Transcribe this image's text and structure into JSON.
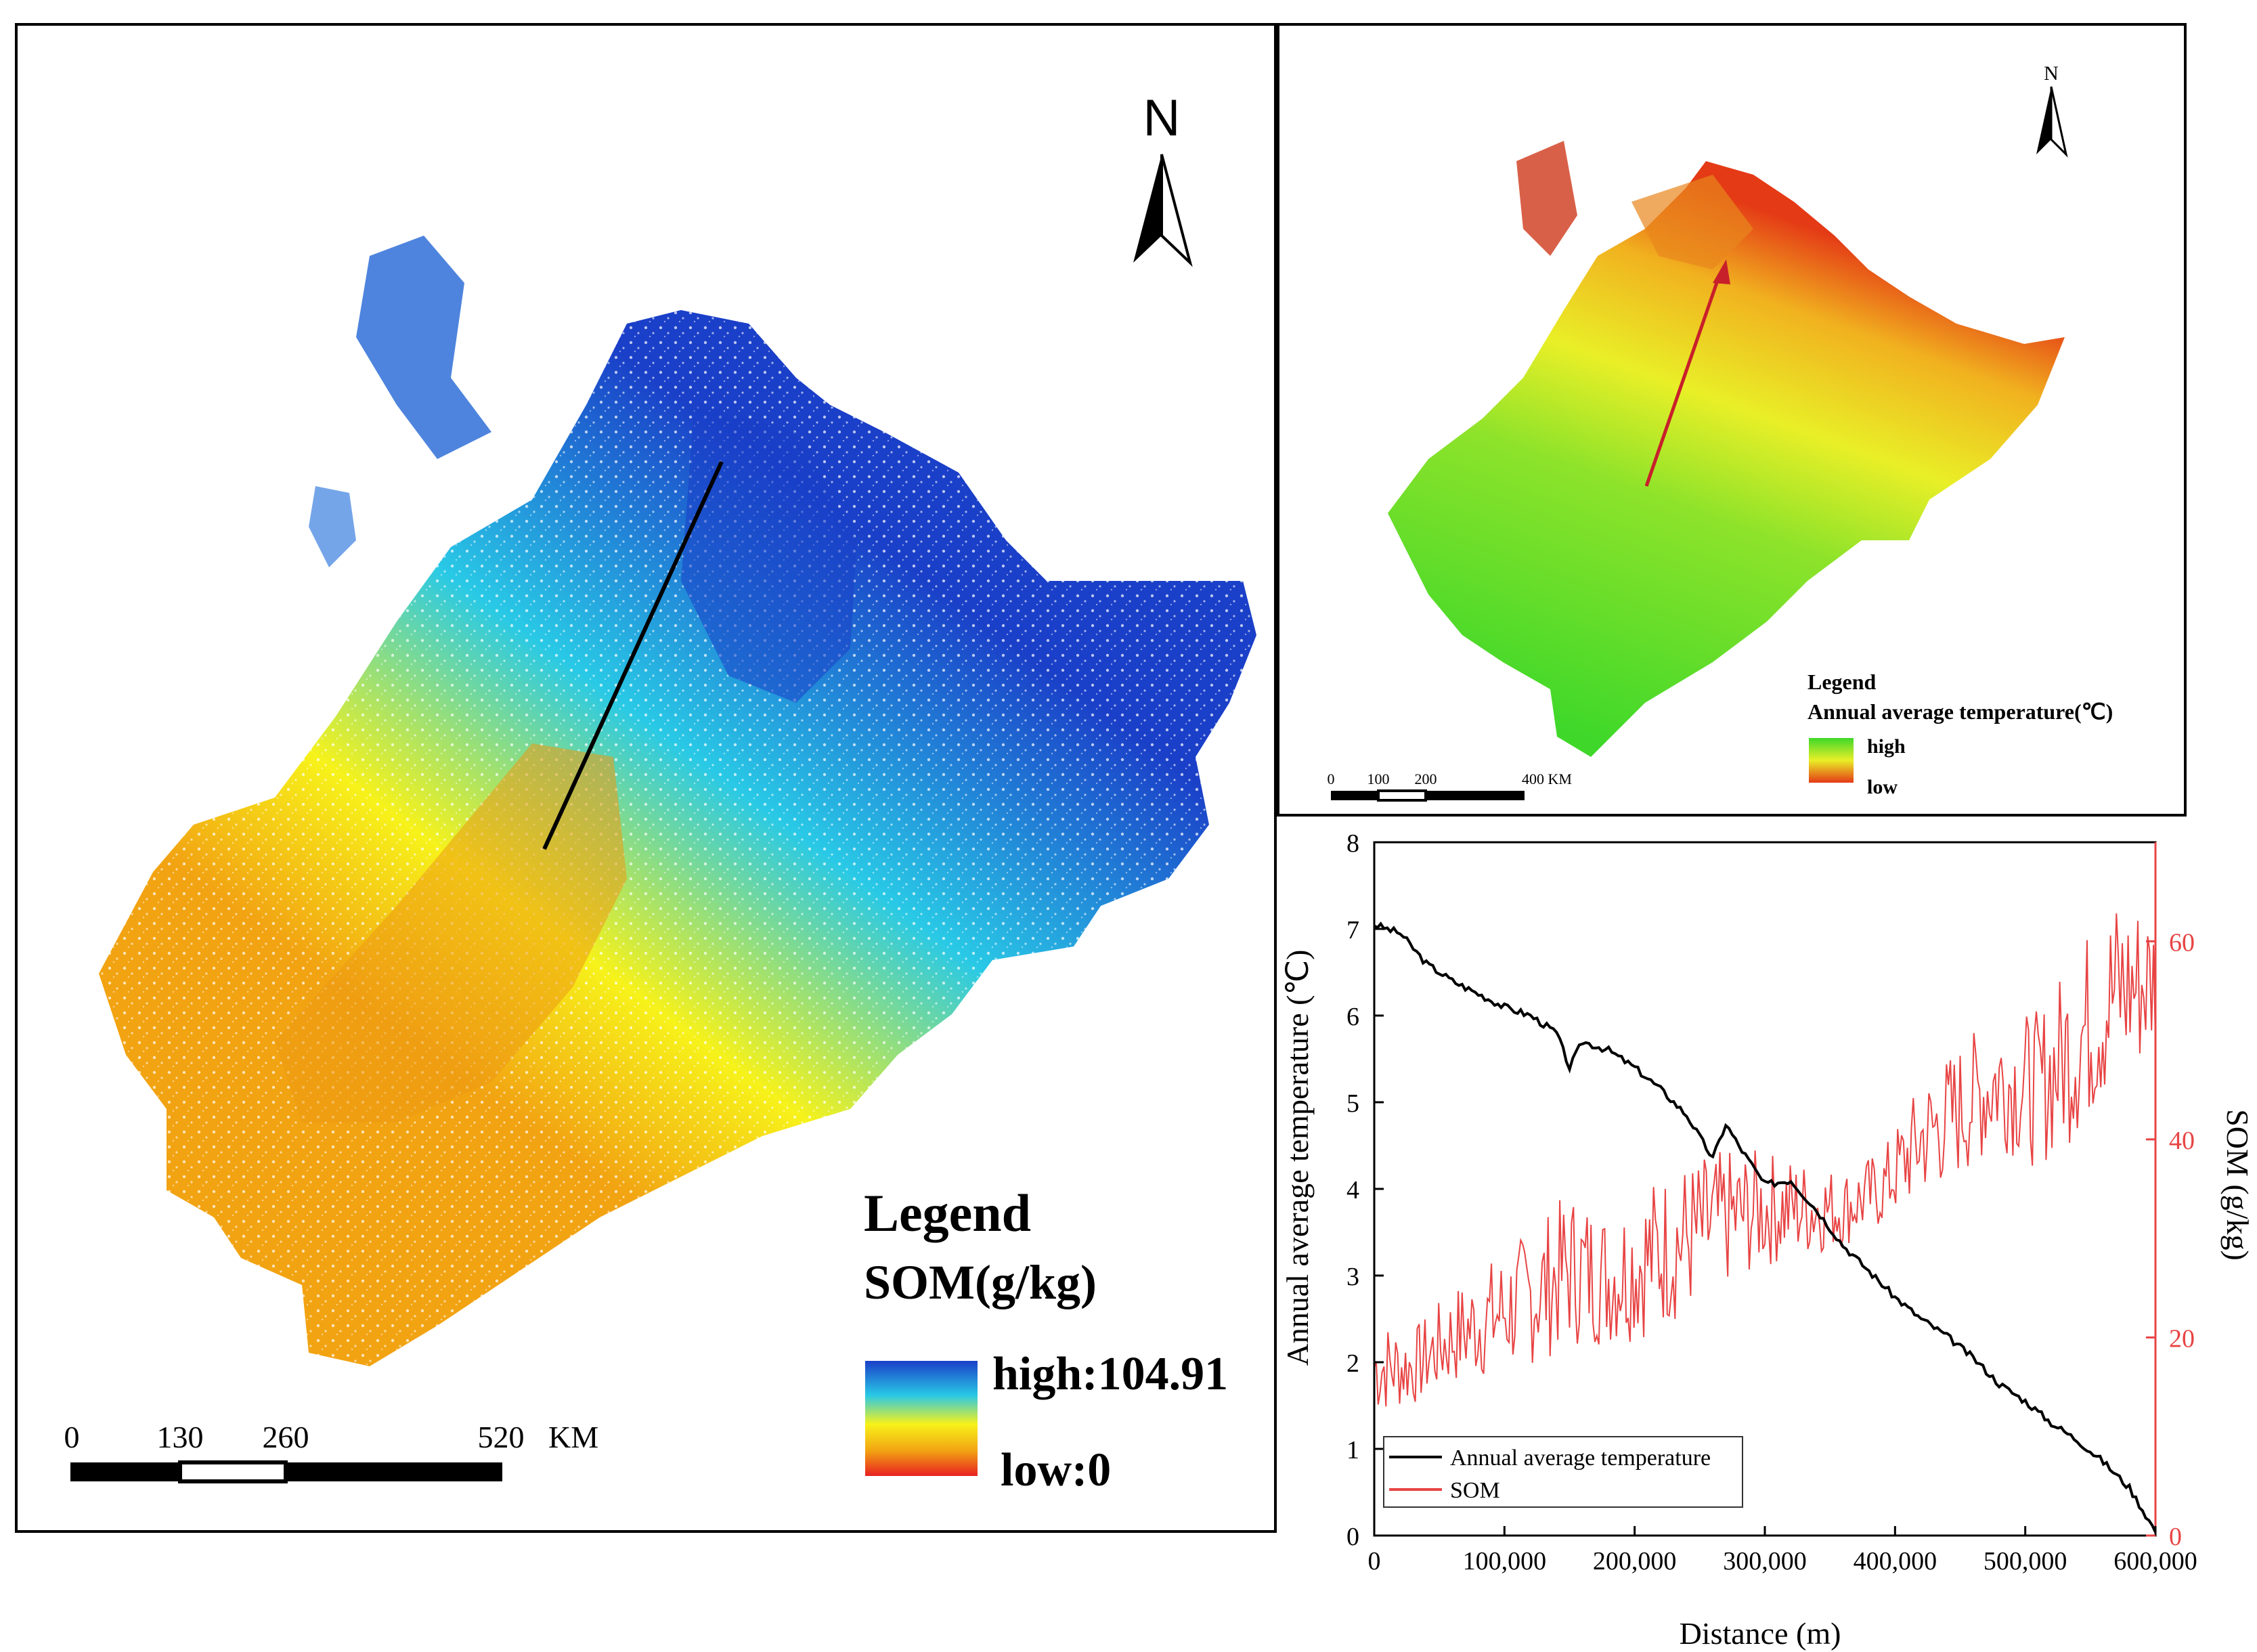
{
  "som_map": {
    "north_label": "N",
    "legend_title": "Legend",
    "legend_subtitle": "SOM(g/kg)",
    "legend_high": "high:104.91",
    "legend_low": "low:0",
    "scale_ticks": [
      "0",
      "130",
      "260",
      "520"
    ],
    "scale_unit": "KM",
    "colors": {
      "high": "#1a3fc8",
      "mid_high": "#29c9e6",
      "mid": "#f7f21a",
      "mid_low": "#f2a312",
      "low": "#e82020"
    }
  },
  "temp_map": {
    "north_label": "N",
    "legend_title": "Legend",
    "legend_subtitle": "Annual average temperature(℃)",
    "legend_high": "high",
    "legend_low": "low",
    "scale_ticks": [
      "0",
      "100",
      "200",
      "400 KM"
    ],
    "colors": {
      "high": "#3fd82a",
      "mid": "#e9ef27",
      "low": "#e43a16"
    }
  },
  "chart_data": {
    "type": "line",
    "x_label": "Distance (m)",
    "y_label_left": "Annual average temperature (℃)",
    "y_label_right": "SOM (g/kg)",
    "x_ticks": [
      "0",
      "100,000",
      "200,000",
      "300,000",
      "400,000",
      "500,000",
      "600,000"
    ],
    "y_left_ticks": [
      "0",
      "1",
      "2",
      "3",
      "4",
      "5",
      "6",
      "7",
      "8"
    ],
    "y_right_ticks": [
      "0",
      "20",
      "40",
      "60"
    ],
    "xlim": [
      0,
      600000
    ],
    "ylim_left": [
      0,
      8
    ],
    "ylim_right": [
      0,
      70
    ],
    "legend": [
      "Annual average temperature",
      "SOM"
    ],
    "series": [
      {
        "name": "Annual average temperature",
        "color": "#000000",
        "axis": "left",
        "x": [
          0,
          20000,
          40000,
          60000,
          80000,
          100000,
          120000,
          140000,
          150000,
          160000,
          180000,
          200000,
          220000,
          240000,
          260000,
          270000,
          280000,
          300000,
          320000,
          340000,
          360000,
          380000,
          400000,
          420000,
          440000,
          460000,
          480000,
          500000,
          520000,
          540000,
          560000,
          580000,
          600000
        ],
        "values": [
          7.05,
          6.95,
          6.6,
          6.4,
          6.25,
          6.1,
          6.0,
          5.8,
          5.4,
          5.7,
          5.6,
          5.4,
          5.15,
          4.85,
          4.35,
          4.75,
          4.5,
          4.05,
          4.1,
          3.75,
          3.35,
          3.05,
          2.75,
          2.5,
          2.3,
          2.05,
          1.75,
          1.55,
          1.3,
          1.1,
          0.85,
          0.55,
          0.05
        ]
      },
      {
        "name": "SOM",
        "color": "#e84444",
        "axis": "right",
        "x": [
          0,
          30000,
          60000,
          90000,
          120000,
          150000,
          180000,
          210000,
          240000,
          270000,
          300000,
          330000,
          360000,
          390000,
          420000,
          450000,
          480000,
          510000,
          540000,
          570000,
          600000
        ],
        "values": [
          17,
          17,
          20,
          22,
          24,
          27,
          26,
          28,
          30,
          32,
          33,
          33,
          33,
          35,
          40,
          43,
          46,
          45,
          50,
          55,
          56
        ],
        "noise_amplitude": [
          5,
          4,
          5,
          6,
          7,
          8,
          7,
          8,
          8,
          7,
          6,
          5,
          4,
          4,
          6,
          7,
          7,
          8,
          10,
          10,
          8
        ]
      }
    ]
  }
}
